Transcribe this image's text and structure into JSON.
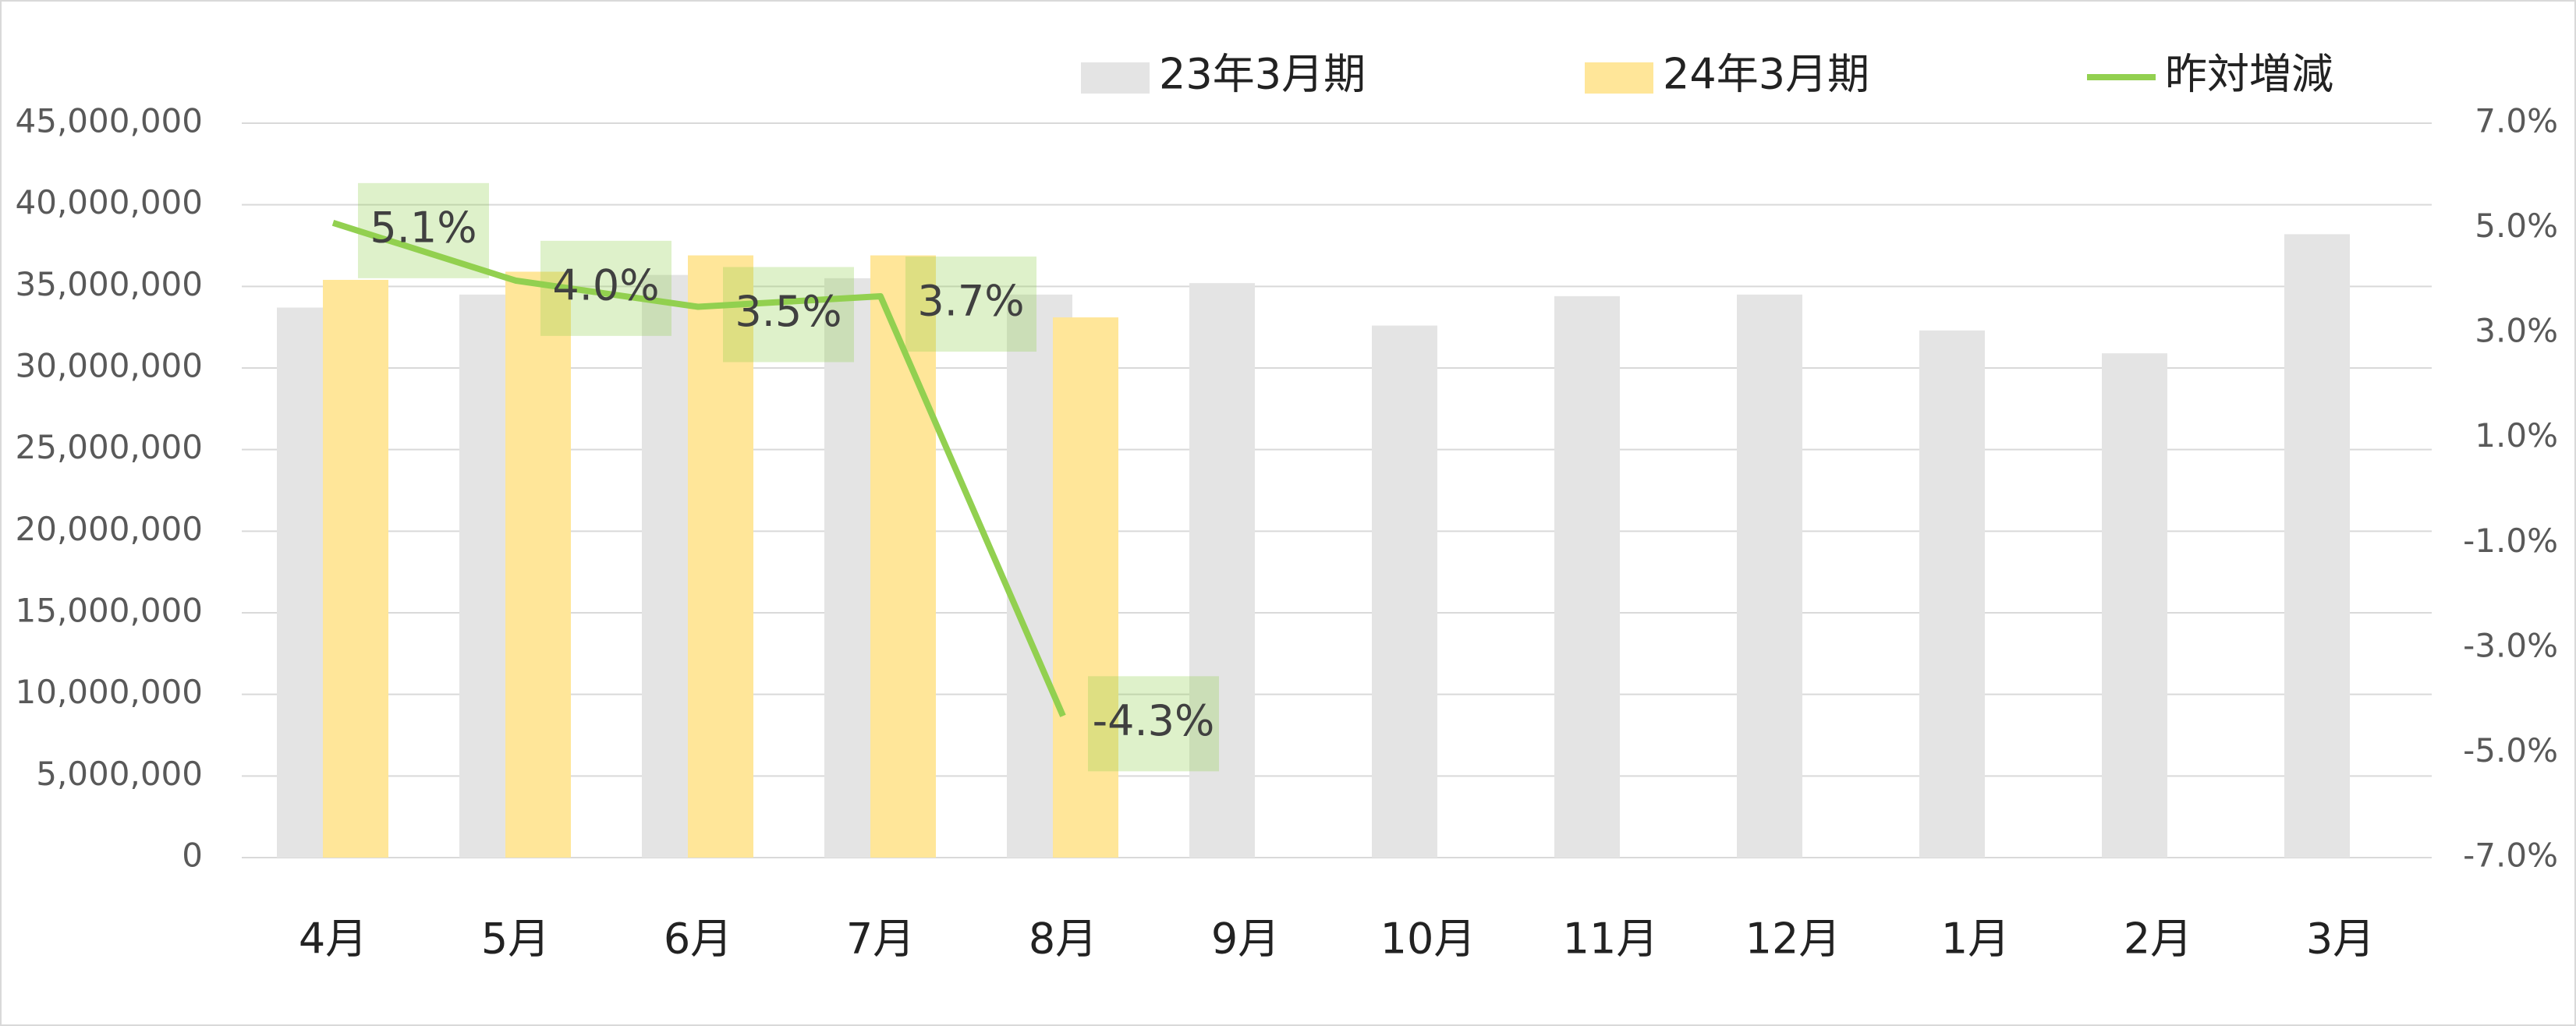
{
  "chart_data": {
    "type": "bar",
    "categories": [
      "4月",
      "5月",
      "6月",
      "7月",
      "8月",
      "9月",
      "10月",
      "11月",
      "12月",
      "1月",
      "2月",
      "3月"
    ],
    "series": [
      {
        "name": "23年3月期",
        "type": "bar",
        "color": "#e4e4e4",
        "values": [
          33700000,
          34500000,
          35700000,
          35500000,
          34500000,
          35200000,
          32600000,
          34400000,
          34500000,
          32300000,
          30900000,
          38200000
        ]
      },
      {
        "name": "24年3月期",
        "type": "bar",
        "color": "#ffe699",
        "values": [
          35400000,
          35900000,
          36900000,
          36900000,
          33100000,
          null,
          null,
          null,
          null,
          null,
          null,
          null
        ]
      },
      {
        "name": "昨対増減",
        "type": "line",
        "axis": "y2",
        "color": "#92d050",
        "values": [
          5.1,
          4.0,
          3.5,
          3.7,
          -4.3,
          null,
          null,
          null,
          null,
          null,
          null,
          null
        ],
        "value_labels": [
          "5.1%",
          "4.0%",
          "3.5%",
          "3.7%",
          "-4.3%",
          null,
          null,
          null,
          null,
          null,
          null,
          null
        ]
      }
    ],
    "ylim": [
      0,
      45000000
    ],
    "yticks": [
      0,
      {
        "value": 5000000,
        "label": "5,000,000"
      },
      {
        "value": 10000000,
        "label": "10,000,000"
      },
      {
        "value": 15000000,
        "label": "15,000,000"
      },
      {
        "value": 20000000,
        "label": "20,000,000"
      },
      {
        "value": 25000000,
        "label": "25,000,000"
      },
      {
        "value": 30000000,
        "label": "30,000,000"
      },
      {
        "value": 35000000,
        "label": "35,000,000"
      },
      {
        "value": 40000000,
        "label": "40,000,000"
      },
      {
        "value": 45000000,
        "label": "45,000,000"
      }
    ],
    "y2lim": [
      -7,
      7
    ],
    "y2ticks": [
      {
        "value": -7,
        "label": "-7.0%"
      },
      {
        "value": -5,
        "label": "-5.0%"
      },
      {
        "value": -3,
        "label": "-3.0%"
      },
      {
        "value": -1,
        "label": "-1.0%"
      },
      {
        "value": 1,
        "label": "1.0%"
      },
      {
        "value": 3,
        "label": "3.0%"
      },
      {
        "value": 5,
        "label": "5.0%"
      },
      {
        "value": 7,
        "label": "7.0%"
      }
    ],
    "grid": true,
    "legend": "top"
  }
}
